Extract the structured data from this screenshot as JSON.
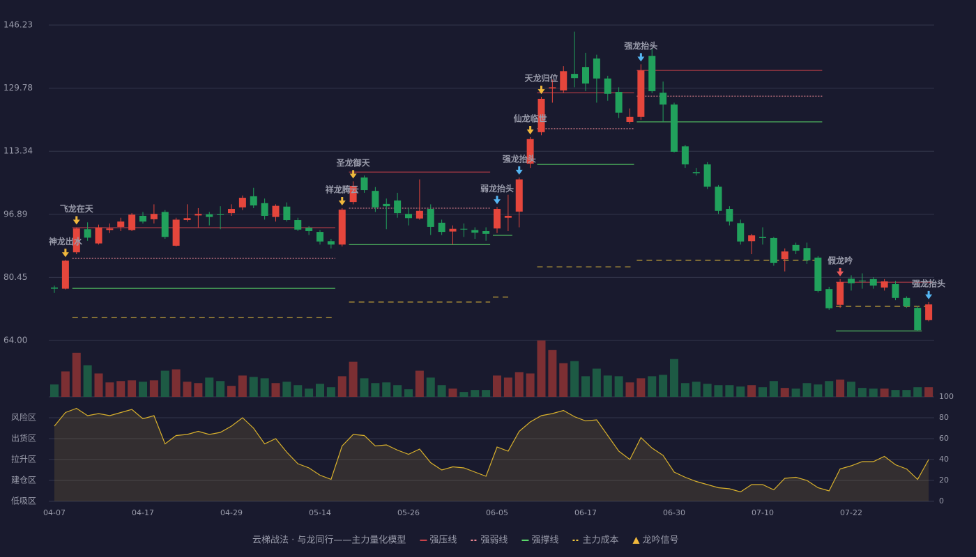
{
  "chart_data": [
    {
      "type": "candlestick",
      "categories": [
        "04-07",
        null,
        null,
        null,
        null,
        null,
        null,
        null,
        "04-17",
        null,
        null,
        null,
        null,
        null,
        null,
        null,
        "04-29",
        null,
        null,
        null,
        null,
        null,
        null,
        null,
        "05-14",
        null,
        null,
        null,
        null,
        null,
        null,
        null,
        "05-26",
        null,
        null,
        null,
        null,
        null,
        null,
        null,
        "06-05",
        null,
        null,
        null,
        null,
        null,
        null,
        null,
        "06-17",
        null,
        null,
        null,
        null,
        null,
        null,
        null,
        "06-30",
        null,
        null,
        null,
        null,
        null,
        null,
        null,
        "07-10",
        null,
        null,
        null,
        null,
        null,
        null,
        null,
        "07-22",
        null,
        null,
        null,
        null,
        null,
        null,
        null
      ],
      "open": [
        77.8,
        77.5,
        87.0,
        93.0,
        89.3,
        92.8,
        93.6,
        92.8,
        96.5,
        95.6,
        97.5,
        88.7,
        95.4,
        96.6,
        96.9,
        96.9,
        97.2,
        98.7,
        101.6,
        99.8,
        96.2,
        98.9,
        95.4,
        93.4,
        92.3,
        89.9,
        89.0,
        100.1,
        106.5,
        103.0,
        99.6,
        100.5,
        97.0,
        95.8,
        98.3,
        94.7,
        92.4,
        93.1,
        92.8,
        92.5,
        93.2,
        96.0,
        97.6,
        110.1,
        118.3,
        129.7,
        129.2,
        133.5,
        135.3,
        137.5,
        132.3,
        128.8,
        121.0,
        122.3,
        138.2,
        128.6,
        125.5,
        114.6,
        107.9,
        109.9,
        104.1,
        98.3,
        94.6,
        89.9,
        91.0,
        90.7,
        85.2,
        88.9,
        88.1,
        85.6,
        77.4,
        73.3,
        80.1,
        79.6,
        80.0,
        77.8,
        78.7,
        75.1,
        72.5,
        69.3
      ],
      "high": [
        78.3,
        85.0,
        93.5,
        94.8,
        94.2,
        94.5,
        96.0,
        97.2,
        97.5,
        99.5,
        98.0,
        96.0,
        99.5,
        98.5,
        97.5,
        99.0,
        99.5,
        101.8,
        103.8,
        101.0,
        99.5,
        100.0,
        96.0,
        93.8,
        92.8,
        90.5,
        98.5,
        105.5,
        107.0,
        104.0,
        101.0,
        102.5,
        98.5,
        106.0,
        99.5,
        95.5,
        94.0,
        94.5,
        93.5,
        93.5,
        98.8,
        102.0,
        106.5,
        117.0,
        127.5,
        132.0,
        135.5,
        144.5,
        139.0,
        138.5,
        133.0,
        130.0,
        124.5,
        136.0,
        140.0,
        131.5,
        126.0,
        115.0,
        109.0,
        110.5,
        104.5,
        99.0,
        95.5,
        91.8,
        93.5,
        91.0,
        88.0,
        89.5,
        89.5,
        86.0,
        78.0,
        80.0,
        81.0,
        81.5,
        80.5,
        80.0,
        79.5,
        75.5,
        73.0,
        74.0
      ],
      "low": [
        76.4,
        77.3,
        86.5,
        90.0,
        89.0,
        92.0,
        92.5,
        92.5,
        94.5,
        94.5,
        90.5,
        88.5,
        95.0,
        93.5,
        94.0,
        93.0,
        96.5,
        98.0,
        98.5,
        95.5,
        95.0,
        95.0,
        92.5,
        91.5,
        89.0,
        88.0,
        88.5,
        99.5,
        102.5,
        97.5,
        93.0,
        96.0,
        94.0,
        95.5,
        91.5,
        91.5,
        89.0,
        91.0,
        90.5,
        90.0,
        92.0,
        92.5,
        93.5,
        109.0,
        117.5,
        126.0,
        128.5,
        130.0,
        129.0,
        126.0,
        126.5,
        122.0,
        120.5,
        121.5,
        128.5,
        121.0,
        113.0,
        109.0,
        107.0,
        103.5,
        97.0,
        94.0,
        89.0,
        86.5,
        89.0,
        83.5,
        82.0,
        86.5,
        84.0,
        76.5,
        72.0,
        72.5,
        77.0,
        77.5,
        77.5,
        77.0,
        74.5,
        72.5,
        66.5,
        69.0
      ],
      "close": [
        77.5,
        84.8,
        93.2,
        90.8,
        93.5,
        93.2,
        95.0,
        96.8,
        95.0,
        97.0,
        91.0,
        95.5,
        95.9,
        97.0,
        96.2,
        96.7,
        98.3,
        101.2,
        99.2,
        96.5,
        99.1,
        95.4,
        92.9,
        92.5,
        89.8,
        89.0,
        98.1,
        104.3,
        103.2,
        98.7,
        99.0,
        97.2,
        95.9,
        97.8,
        93.6,
        92.3,
        93.1,
        93.0,
        92.1,
        91.8,
        98.3,
        96.5,
        106.0,
        116.5,
        127.0,
        130.0,
        134.2,
        132.4,
        131.0,
        132.3,
        128.3,
        123.4,
        122.3,
        134.4,
        129.0,
        125.5,
        113.2,
        109.9,
        107.6,
        104.1,
        97.8,
        95.0,
        89.8,
        91.4,
        90.7,
        84.2,
        87.2,
        87.4,
        84.9,
        76.9,
        72.4,
        79.2,
        78.9,
        79.4,
        78.3,
        79.4,
        75.1,
        72.9,
        66.7,
        73.4
      ],
      "up_color": "#e5463c",
      "down_color": "#21a15c",
      "ylim": [
        64,
        146.23
      ],
      "yticks": [
        {
          "value": 64,
          "label": "64.00"
        },
        {
          "value": 80.45,
          "label": "80.45"
        },
        {
          "value": 96.89,
          "label": "96.89"
        },
        {
          "value": 113.34,
          "label": "113.34"
        },
        {
          "value": 129.78,
          "label": "129.78"
        },
        {
          "value": 146.23,
          "label": "146.23"
        }
      ],
      "grid": true,
      "levels": [
        {
          "name": "强压线",
          "color": "#c9424a",
          "dash": "",
          "segments": [
            {
              "start": 2,
              "end": 25,
              "value": 93.4
            },
            {
              "start": 27,
              "end": 39,
              "value": 107.9
            },
            {
              "start": 44,
              "end": 52,
              "value": 128.6
            },
            {
              "start": 53,
              "end": 69,
              "value": 134.4
            },
            {
              "start": 71,
              "end": 79,
              "value": 79.2
            }
          ]
        },
        {
          "name": "强弱线",
          "color": "#f08a96",
          "dash": "2 2",
          "segments": [
            {
              "start": 2,
              "end": 25,
              "value": 85.4
            },
            {
              "start": 27,
              "end": 39,
              "value": 98.5
            },
            {
              "start": 44,
              "end": 52,
              "value": 119.2
            },
            {
              "start": 53,
              "end": 69,
              "value": 127.7
            }
          ]
        },
        {
          "name": "强撑线",
          "color": "#5ad96a",
          "dash": "",
          "segments": [
            {
              "start": 2,
              "end": 25,
              "value": 77.6
            },
            {
              "start": 27,
              "end": 39,
              "value": 89.0
            },
            {
              "start": 40,
              "end": 41,
              "value": 91.4
            },
            {
              "start": 44,
              "end": 52,
              "value": 109.9
            },
            {
              "start": 53,
              "end": 69,
              "value": 121.0
            },
            {
              "start": 71,
              "end": 78,
              "value": 66.5
            }
          ]
        },
        {
          "name": "主力成本",
          "color": "#f0c63c",
          "dash": "8 6",
          "segments": [
            {
              "start": 2,
              "end": 25,
              "value": 70.0
            },
            {
              "start": 27,
              "end": 39,
              "value": 74.0
            },
            {
              "start": 40,
              "end": 41,
              "value": 75.3
            },
            {
              "start": 44,
              "end": 52,
              "value": 83.2
            },
            {
              "start": 53,
              "end": 69,
              "value": 84.9
            },
            {
              "start": 71,
              "end": 79,
              "value": 72.9
            }
          ]
        }
      ],
      "signals_name": "龙吟信号",
      "signals_color": "#f0b83c",
      "signals": [
        {
          "label": "神龙出水",
          "index": 1,
          "color": "#f0b83c"
        },
        {
          "label": "飞龙在天",
          "index": 2,
          "color": "#f0b83c"
        },
        {
          "label": "祥龙腾云",
          "index": 26,
          "color": "#f0b83c"
        },
        {
          "label": "圣龙御天",
          "index": 27,
          "color": "#f0b83c"
        },
        {
          "label": "弱龙抬头",
          "index": 40,
          "color": "#55b6f2"
        },
        {
          "label": "强龙抬头",
          "index": 42,
          "color": "#55b6f2"
        },
        {
          "label": "仙龙临世",
          "index": 43,
          "color": "#f0b83c"
        },
        {
          "label": "天龙归位",
          "index": 44,
          "color": "#f0b83c"
        },
        {
          "label": "强龙抬头",
          "index": 53,
          "color": "#55b6f2"
        },
        {
          "label": "假龙吟",
          "index": 71,
          "color": "#ee5a5a"
        },
        {
          "label": "强龙抬头",
          "index": 79,
          "color": "#55b6f2"
        }
      ]
    },
    {
      "type": "bar",
      "values": [
        18,
        37,
        64,
        46,
        34,
        21,
        23,
        24,
        22,
        24,
        38,
        40,
        22,
        20,
        28,
        23,
        16,
        31,
        29,
        27,
        20,
        22,
        17,
        12,
        19,
        14,
        30,
        51,
        27,
        20,
        21,
        17,
        11,
        38,
        28,
        17,
        12,
        7,
        10,
        10,
        31,
        28,
        36,
        34,
        82,
        68,
        49,
        52,
        30,
        41,
        31,
        30,
        21,
        27,
        30,
        32,
        55,
        20,
        22,
        19,
        17,
        17,
        15,
        17,
        14,
        23,
        13,
        12,
        20,
        18,
        23,
        25,
        22,
        13,
        12,
        12,
        10,
        10,
        14,
        14
      ],
      "up_color": "#7c2f33",
      "down_color": "#1d5a44",
      "ylim": [
        0,
        82
      ]
    },
    {
      "type": "area",
      "values": [
        72,
        85,
        89,
        82,
        84,
        82,
        85,
        88,
        79,
        82,
        55,
        63,
        64,
        67,
        64,
        66,
        72,
        80,
        70,
        55,
        60,
        47,
        36,
        32,
        25,
        21,
        53,
        64,
        63,
        53,
        54,
        49,
        45,
        50,
        37,
        30,
        33,
        32,
        28,
        24,
        52,
        48,
        67,
        76,
        82,
        84,
        87,
        81,
        77,
        78,
        63,
        48,
        40,
        61,
        51,
        44,
        28,
        23,
        19,
        16,
        13,
        12,
        9,
        16,
        16,
        11,
        22,
        23,
        20,
        13,
        10,
        31,
        34,
        38,
        38,
        43,
        35,
        31,
        21,
        40
      ],
      "color": "#d9b12c",
      "ylim": [
        0,
        100
      ],
      "yticks": [
        0,
        20,
        40,
        60,
        80,
        100
      ],
      "ytick_colors": [
        "#f05050",
        "#e8a040",
        "#4fa0f0",
        "#e040e0",
        "#e8a040",
        "#40e040"
      ],
      "zones": [
        {
          "label": "风险区",
          "value": 80,
          "color": "#e8a040"
        },
        {
          "label": "出货区",
          "value": 60,
          "color": "#e040e0"
        },
        {
          "label": "拉升区",
          "value": 40,
          "color": "#4fa0f0"
        },
        {
          "label": "建仓区",
          "value": 20,
          "color": "#f05050"
        },
        {
          "label": "低吸区",
          "value": 0,
          "color": "#f05050"
        }
      ],
      "grid": true
    }
  ],
  "legend": {
    "title": "云梯战法 · 与龙同行——主力量化模型",
    "title_color": "#e8c060"
  }
}
